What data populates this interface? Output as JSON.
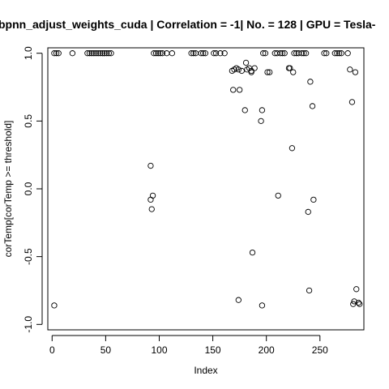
{
  "chart_data": {
    "type": "scatter",
    "title": "bpnn_adjust_weights_cuda | Correlation = -1| No. = 128 | GPU = Tesla-",
    "xlabel": "Index",
    "ylabel": "corTemp[corTemp >= threshold]",
    "xlim": [
      -4,
      291
    ],
    "ylim": [
      -1.04,
      1.04
    ],
    "x_ticks": [
      0,
      50,
      100,
      150,
      200,
      250
    ],
    "y_ticks": [
      -1.0,
      -0.5,
      0.0,
      0.5,
      1.0
    ],
    "y_tick_labels": [
      "-1.0",
      "-0.5",
      "0.0",
      "0.5",
      "1.0"
    ],
    "grid": false,
    "marker": "open-circle",
    "points": [
      [
        2,
        -0.86
      ],
      [
        2,
        1.0
      ],
      [
        4,
        1.0
      ],
      [
        6,
        1.0
      ],
      [
        19,
        1.0
      ],
      [
        33,
        1.0
      ],
      [
        35,
        1.0
      ],
      [
        37,
        1.0
      ],
      [
        39,
        1.0
      ],
      [
        41,
        1.0
      ],
      [
        43,
        1.0
      ],
      [
        45,
        1.0
      ],
      [
        47,
        1.0
      ],
      [
        49,
        1.0
      ],
      [
        51,
        1.0
      ],
      [
        53,
        1.0
      ],
      [
        55,
        1.0
      ],
      [
        92,
        0.17
      ],
      [
        92,
        -0.08
      ],
      [
        93,
        -0.15
      ],
      [
        94,
        -0.05
      ],
      [
        95,
        1.0
      ],
      [
        97,
        1.0
      ],
      [
        99,
        1.0
      ],
      [
        101,
        1.0
      ],
      [
        103,
        1.0
      ],
      [
        107,
        1.0
      ],
      [
        112,
        1.0
      ],
      [
        130,
        1.0
      ],
      [
        132,
        1.0
      ],
      [
        134,
        1.0
      ],
      [
        139,
        1.0
      ],
      [
        141,
        1.0
      ],
      [
        143,
        1.0
      ],
      [
        151,
        1.0
      ],
      [
        153,
        1.0
      ],
      [
        157,
        1.0
      ],
      [
        161,
        1.0
      ],
      [
        168,
        0.87
      ],
      [
        169,
        0.73
      ],
      [
        170,
        0.88
      ],
      [
        172,
        0.89
      ],
      [
        174,
        0.88
      ],
      [
        174,
        -0.82
      ],
      [
        175,
        0.73
      ],
      [
        177,
        0.87
      ],
      [
        180,
        0.58
      ],
      [
        181,
        0.93
      ],
      [
        182,
        0.88
      ],
      [
        184,
        0.89
      ],
      [
        186,
        0.87
      ],
      [
        186,
        0.86
      ],
      [
        187,
        -0.47
      ],
      [
        189,
        0.89
      ],
      [
        195,
        0.5
      ],
      [
        196,
        0.58
      ],
      [
        196,
        -0.86
      ],
      [
        197,
        1.0
      ],
      [
        199,
        1.0
      ],
      [
        201,
        0.86
      ],
      [
        203,
        0.86
      ],
      [
        208,
        1.0
      ],
      [
        210,
        1.0
      ],
      [
        211,
        -0.05
      ],
      [
        213,
        1.0
      ],
      [
        215,
        1.0
      ],
      [
        217,
        1.0
      ],
      [
        221,
        0.89
      ],
      [
        222,
        0.89
      ],
      [
        224,
        0.3
      ],
      [
        225,
        0.86
      ],
      [
        226,
        1.0
      ],
      [
        228,
        1.0
      ],
      [
        230,
        1.0
      ],
      [
        233,
        1.0
      ],
      [
        235,
        1.0
      ],
      [
        237,
        1.0
      ],
      [
        239,
        -0.17
      ],
      [
        240,
        -0.75
      ],
      [
        241,
        0.79
      ],
      [
        243,
        0.61
      ],
      [
        244,
        -0.08
      ],
      [
        254,
        1.0
      ],
      [
        256,
        1.0
      ],
      [
        264,
        1.0
      ],
      [
        266,
        1.0
      ],
      [
        268,
        1.0
      ],
      [
        270,
        1.0
      ],
      [
        276,
        1.0
      ],
      [
        278,
        0.88
      ],
      [
        280,
        0.64
      ],
      [
        281,
        -0.85
      ],
      [
        282,
        -0.83
      ],
      [
        283,
        0.86
      ],
      [
        284,
        -0.74
      ],
      [
        286,
        -0.84
      ],
      [
        287,
        -0.85
      ]
    ]
  }
}
